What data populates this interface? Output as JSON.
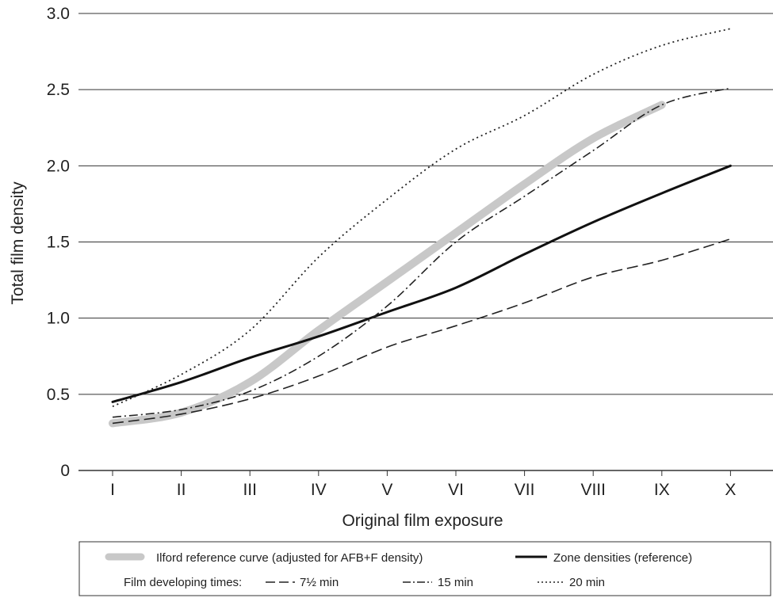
{
  "chart_data": {
    "type": "line",
    "xlabel": "Original film exposure",
    "ylabel": "Total film density",
    "categories": [
      "I",
      "II",
      "III",
      "IV",
      "V",
      "VI",
      "VII",
      "VIII",
      "IX",
      "X"
    ],
    "ylim": [
      0,
      3.0
    ],
    "yticks": [
      "0",
      "0.5",
      "1.0",
      "1.5",
      "2.0",
      "2.5",
      "3.0"
    ],
    "grid": "horizontal",
    "legend_position": "bottom",
    "series": [
      {
        "name": "Ilford reference curve (adjusted for AFB+F density)",
        "style": "thick-gray",
        "color": "#c8c8c8",
        "x": [
          "I",
          "II",
          "III",
          "IV",
          "V",
          "VI",
          "VII",
          "VIII",
          "IX"
        ],
        "values": [
          0.31,
          0.38,
          0.58,
          0.92,
          1.24,
          1.56,
          1.88,
          2.18,
          2.4
        ]
      },
      {
        "name": "Zone densities (reference)",
        "style": "solid",
        "color": "#111111",
        "x": [
          "I",
          "II",
          "III",
          "IV",
          "V",
          "VI",
          "VII",
          "VIII",
          "IX",
          "X"
        ],
        "values": [
          0.45,
          0.58,
          0.74,
          0.88,
          1.04,
          1.2,
          1.42,
          1.63,
          1.82,
          2.0
        ]
      },
      {
        "name": "7½ min",
        "style": "dashed",
        "color": "#222222",
        "x": [
          "I",
          "II",
          "III",
          "IV",
          "V",
          "VI",
          "VII",
          "VIII",
          "IX",
          "X"
        ],
        "values": [
          0.31,
          0.37,
          0.47,
          0.62,
          0.81,
          0.95,
          1.1,
          1.27,
          1.38,
          1.52
        ]
      },
      {
        "name": "15 min",
        "style": "dashdot",
        "color": "#222222",
        "x": [
          "I",
          "II",
          "III",
          "IV",
          "V",
          "VI",
          "VII",
          "VIII",
          "IX",
          "X"
        ],
        "values": [
          0.35,
          0.4,
          0.52,
          0.75,
          1.08,
          1.5,
          1.8,
          2.1,
          2.4,
          2.51
        ]
      },
      {
        "name": "20 min",
        "style": "dotted",
        "color": "#222222",
        "x": [
          "I",
          "II",
          "III",
          "IV",
          "V",
          "VI",
          "VII",
          "VIII",
          "IX",
          "X"
        ],
        "values": [
          0.42,
          0.63,
          0.92,
          1.4,
          1.78,
          2.11,
          2.33,
          2.6,
          2.79,
          2.9
        ]
      }
    ],
    "legend": {
      "row1": [
        "Ilford reference curve (adjusted for AFB+F density)",
        "Zone densities (reference)"
      ],
      "row2_label": "Film developing times:",
      "row2": [
        "7½ min",
        "15 min",
        "20 min"
      ]
    }
  }
}
